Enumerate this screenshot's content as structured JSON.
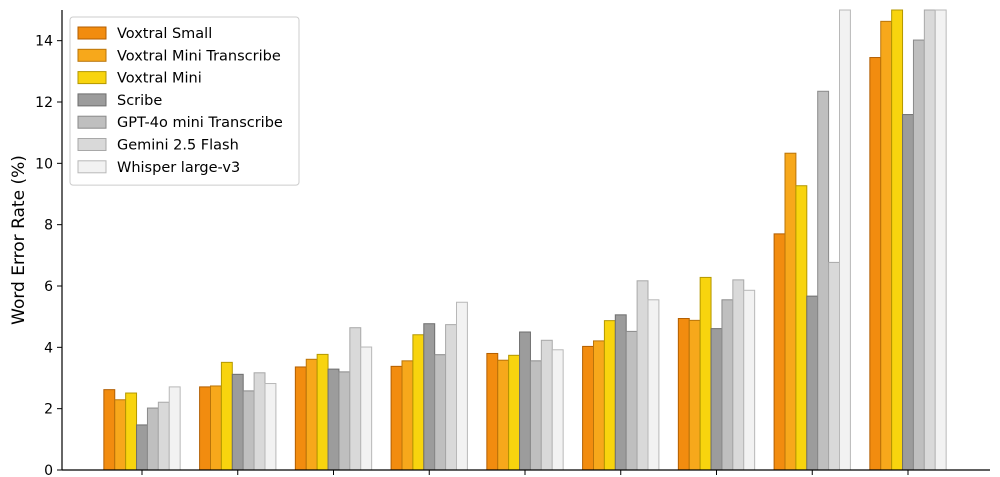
{
  "chart_data": {
    "type": "bar",
    "title": "",
    "xlabel": "",
    "ylabel": "Word Error Rate (%)",
    "ylim": [
      0,
      15
    ],
    "yticks": [
      0,
      2,
      4,
      6,
      8,
      10,
      12,
      14
    ],
    "grid": false,
    "legend_position": "top-left",
    "categories": [
      "",
      "",
      "",
      "",
      "",
      "",
      "",
      "",
      ""
    ],
    "series": [
      {
        "name": "Voxtral Small",
        "color": "#F28C0F",
        "edge": "#B35E00",
        "values": [
          2.62,
          2.71,
          3.36,
          3.38,
          3.8,
          4.03,
          4.94,
          7.7,
          13.45
        ]
      },
      {
        "name": "Voxtral Mini Transcribe",
        "color": "#F7A81B",
        "edge": "#B9740A",
        "values": [
          2.29,
          2.74,
          3.61,
          3.56,
          3.58,
          4.21,
          4.88,
          10.33,
          14.63
        ]
      },
      {
        "name": "Voxtral Mini",
        "color": "#F8D40E",
        "edge": "#B39700",
        "values": [
          2.51,
          3.51,
          3.77,
          4.41,
          3.74,
          4.87,
          6.28,
          9.27,
          15.0
        ]
      },
      {
        "name": "Scribe",
        "color": "#9C9C9C",
        "edge": "#6E6E6E",
        "values": [
          1.47,
          3.12,
          3.29,
          4.77,
          4.5,
          5.06,
          4.61,
          5.67,
          11.59
        ]
      },
      {
        "name": "GPT-4o mini Transcribe",
        "color": "#BFBFBF",
        "edge": "#8A8A8A",
        "values": [
          2.02,
          2.58,
          3.2,
          3.76,
          3.56,
          4.52,
          5.55,
          12.35,
          14.02
        ]
      },
      {
        "name": "Gemini 2.5 Flash",
        "color": "#D9D9D9",
        "edge": "#A8A8A8",
        "values": [
          2.21,
          3.17,
          4.64,
          4.74,
          4.23,
          6.17,
          6.2,
          6.77,
          15.0
        ]
      },
      {
        "name": "Whisper large-v3",
        "color": "#F2F2F2",
        "edge": "#B8B8B8",
        "values": [
          2.71,
          2.82,
          4.01,
          5.47,
          3.92,
          5.55,
          5.86,
          15.0,
          15.0
        ]
      }
    ]
  }
}
